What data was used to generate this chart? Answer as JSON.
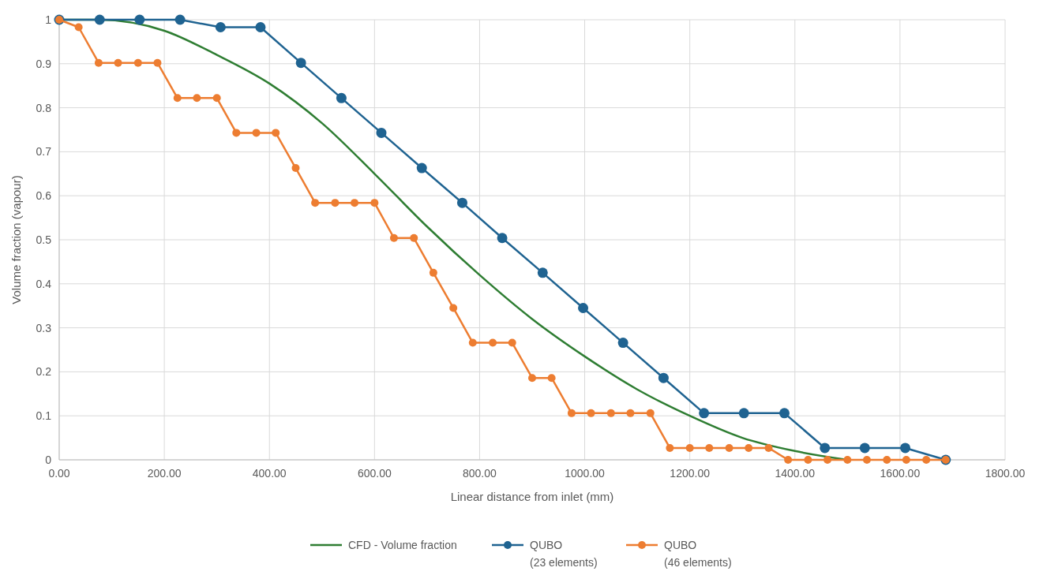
{
  "chart_data": {
    "type": "line",
    "xlabel": "Linear distance from inlet (mm)",
    "ylabel": "Volume fraction (vapour)",
    "xlim": [
      0,
      1800
    ],
    "ylim": [
      0,
      1
    ],
    "xticks": [
      {
        "value": 0,
        "label": "0.00"
      },
      {
        "value": 200,
        "label": "200.00"
      },
      {
        "value": 400,
        "label": "400.00"
      },
      {
        "value": 600,
        "label": "600.00"
      },
      {
        "value": 800,
        "label": "800.00"
      },
      {
        "value": 1000,
        "label": "1000.00"
      },
      {
        "value": 1200,
        "label": "1200.00"
      },
      {
        "value": 1400,
        "label": "1400.00"
      },
      {
        "value": 1600,
        "label": "1600.00"
      },
      {
        "value": 1800,
        "label": "1800.00"
      }
    ],
    "yticks": [
      0,
      0.1,
      0.2,
      0.3,
      0.4,
      0.5,
      0.6,
      0.7,
      0.8,
      0.9,
      1
    ],
    "grid": true,
    "legend": "bottom",
    "line_style": "solid",
    "series": [
      {
        "name": "CFD - Volume fraction",
        "color": "#2e7d32",
        "marker": "none",
        "x": [
          0,
          75,
          200,
          300,
          400,
          500,
          600,
          700,
          800,
          900,
          1000,
          1100,
          1200,
          1300,
          1400,
          1500
        ],
        "values": [
          1,
          1,
          0.975,
          0.92,
          0.855,
          0.765,
          0.65,
          0.53,
          0.42,
          0.32,
          0.235,
          0.16,
          0.1,
          0.05,
          0.02,
          0
        ]
      },
      {
        "name": "QUBO\n(23 elements)",
        "color": "#1f6391",
        "marker": "circle",
        "x": [
          0,
          77,
          153,
          230,
          307,
          383,
          460,
          537,
          613,
          690,
          767,
          843,
          920,
          997,
          1073,
          1150,
          1227,
          1303,
          1380,
          1457,
          1533,
          1610,
          1687
        ],
        "values": [
          1,
          1,
          1,
          1,
          0.983,
          0.983,
          0.902,
          0.822,
          0.743,
          0.663,
          0.584,
          0.504,
          0.425,
          0.345,
          0.266,
          0.186,
          0.106,
          0.106,
          0.106,
          0.027,
          0.027,
          0.027,
          0
        ]
      },
      {
        "name": "QUBO\n(46 elements)",
        "color": "#ed7d31",
        "marker": "circle",
        "x": [
          0,
          37,
          75,
          112,
          150,
          187,
          225,
          262,
          300,
          337,
          375,
          412,
          450,
          487,
          525,
          562,
          600,
          637,
          675,
          712,
          750,
          787,
          825,
          862,
          900,
          937,
          975,
          1012,
          1050,
          1087,
          1125,
          1162,
          1200,
          1237,
          1275,
          1312,
          1350,
          1387,
          1425,
          1462,
          1500,
          1537,
          1575,
          1612,
          1650,
          1687
        ],
        "values": [
          1,
          0.983,
          0.902,
          0.902,
          0.902,
          0.902,
          0.822,
          0.822,
          0.822,
          0.743,
          0.743,
          0.743,
          0.663,
          0.584,
          0.584,
          0.584,
          0.584,
          0.504,
          0.504,
          0.425,
          0.345,
          0.266,
          0.266,
          0.266,
          0.186,
          0.186,
          0.106,
          0.106,
          0.106,
          0.106,
          0.106,
          0.027,
          0.027,
          0.027,
          0.027,
          0.027,
          0.027,
          0,
          0,
          0,
          0,
          0,
          0,
          0,
          0,
          0
        ]
      }
    ]
  }
}
